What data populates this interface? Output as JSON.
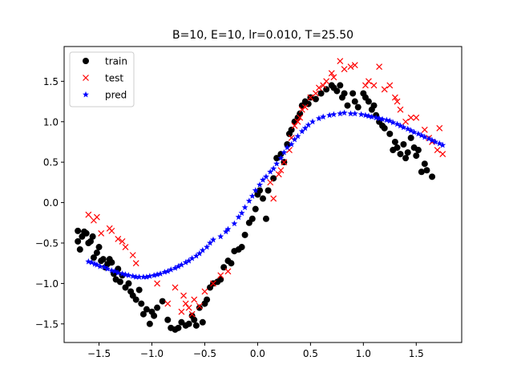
{
  "chart_data": {
    "type": "scatter",
    "title": "B=10, E=10, lr=0.010, T=25.50",
    "xlabel": "",
    "ylabel": "",
    "xlim": [
      -1.83,
      1.93
    ],
    "ylim": [
      -1.73,
      1.93
    ],
    "xticks": [
      -1.5,
      -1.0,
      -0.5,
      0.0,
      0.5,
      1.0,
      1.5
    ],
    "xtick_labels": [
      "−1.5",
      "−1.0",
      "−0.5",
      "0.0",
      "0.5",
      "1.0",
      "1.5"
    ],
    "yticks": [
      -1.5,
      -1.0,
      -0.5,
      0.0,
      0.5,
      1.0,
      1.5
    ],
    "ytick_labels": [
      "−1.5",
      "−1.0",
      "−0.5",
      "0.0",
      "0.5",
      "1.0",
      "1.5"
    ],
    "grid": false,
    "legend_position": "top-left",
    "series": [
      {
        "name": "train",
        "marker": "circle",
        "color": "#000000",
        "points": [
          [
            -1.7,
            -0.35
          ],
          [
            -1.7,
            -0.48
          ],
          [
            -1.68,
            -0.58
          ],
          [
            -1.66,
            -0.42
          ],
          [
            -1.64,
            -0.36
          ],
          [
            -1.62,
            -0.38
          ],
          [
            -1.6,
            -0.5
          ],
          [
            -1.58,
            -0.48
          ],
          [
            -1.56,
            -0.42
          ],
          [
            -1.55,
            -0.68
          ],
          [
            -1.52,
            -0.62
          ],
          [
            -1.5,
            -0.55
          ],
          [
            -1.48,
            -0.72
          ],
          [
            -1.46,
            -0.7
          ],
          [
            -1.44,
            -0.8
          ],
          [
            -1.42,
            -0.76
          ],
          [
            -1.4,
            -0.7
          ],
          [
            -1.38,
            -0.74
          ],
          [
            -1.36,
            -0.88
          ],
          [
            -1.34,
            -0.95
          ],
          [
            -1.32,
            -0.82
          ],
          [
            -1.3,
            -0.98
          ],
          [
            -1.28,
            -0.9
          ],
          [
            -1.25,
            -1.05
          ],
          [
            -1.22,
            -1.0
          ],
          [
            -1.2,
            -1.1
          ],
          [
            -1.18,
            -1.15
          ],
          [
            -1.15,
            -1.2
          ],
          [
            -1.12,
            -1.08
          ],
          [
            -1.1,
            -1.25
          ],
          [
            -1.08,
            -1.38
          ],
          [
            -1.05,
            -1.32
          ],
          [
            -1.02,
            -1.5
          ],
          [
            -1.0,
            -1.35
          ],
          [
            -0.98,
            -1.4
          ],
          [
            -0.95,
            -1.3
          ],
          [
            -0.9,
            -1.22
          ],
          [
            -0.85,
            -1.45
          ],
          [
            -0.82,
            -1.55
          ],
          [
            -0.78,
            -1.57
          ],
          [
            -0.75,
            -1.55
          ],
          [
            -0.72,
            -1.48
          ],
          [
            -0.68,
            -1.52
          ],
          [
            -0.65,
            -1.5
          ],
          [
            -0.62,
            -1.4
          ],
          [
            -0.6,
            -1.45
          ],
          [
            -0.58,
            -1.52
          ],
          [
            -0.55,
            -1.3
          ],
          [
            -0.52,
            -1.48
          ],
          [
            -0.5,
            -1.25
          ],
          [
            -0.48,
            -1.2
          ],
          [
            -0.45,
            -1.05
          ],
          [
            -0.42,
            -1.0
          ],
          [
            -0.38,
            -0.98
          ],
          [
            -0.35,
            -0.95
          ],
          [
            -0.32,
            -0.8
          ],
          [
            -0.28,
            -0.72
          ],
          [
            -0.25,
            -0.75
          ],
          [
            -0.22,
            -0.6
          ],
          [
            -0.18,
            -0.58
          ],
          [
            -0.15,
            -0.55
          ],
          [
            -0.12,
            -0.4
          ],
          [
            -0.08,
            -0.25
          ],
          [
            -0.05,
            -0.2
          ],
          [
            -0.02,
            -0.08
          ],
          [
            0.0,
            0.1
          ],
          [
            0.02,
            0.15
          ],
          [
            0.05,
            0.05
          ],
          [
            0.08,
            -0.2
          ],
          [
            0.1,
            0.15
          ],
          [
            0.15,
            0.3
          ],
          [
            0.18,
            0.55
          ],
          [
            0.22,
            0.6
          ],
          [
            0.25,
            0.5
          ],
          [
            0.28,
            0.72
          ],
          [
            0.3,
            0.85
          ],
          [
            0.32,
            0.9
          ],
          [
            0.35,
            1.0
          ],
          [
            0.38,
            1.05
          ],
          [
            0.4,
            1.1
          ],
          [
            0.42,
            1.2
          ],
          [
            0.45,
            1.25
          ],
          [
            0.48,
            1.22
          ],
          [
            0.5,
            1.3
          ],
          [
            0.55,
            1.28
          ],
          [
            0.6,
            1.35
          ],
          [
            0.65,
            1.4
          ],
          [
            0.7,
            1.45
          ],
          [
            0.72,
            1.42
          ],
          [
            0.75,
            1.38
          ],
          [
            0.78,
            1.45
          ],
          [
            0.8,
            1.3
          ],
          [
            0.82,
            1.35
          ],
          [
            0.85,
            1.2
          ],
          [
            0.9,
            1.35
          ],
          [
            0.92,
            1.25
          ],
          [
            0.95,
            1.18
          ],
          [
            1.0,
            1.35
          ],
          [
            1.02,
            1.3
          ],
          [
            1.05,
            1.25
          ],
          [
            1.08,
            1.15
          ],
          [
            1.1,
            1.2
          ],
          [
            1.12,
            1.08
          ],
          [
            1.15,
            1.0
          ],
          [
            1.18,
            0.95
          ],
          [
            1.2,
            0.92
          ],
          [
            1.25,
            0.85
          ],
          [
            1.28,
            0.65
          ],
          [
            1.3,
            0.75
          ],
          [
            1.32,
            0.68
          ],
          [
            1.35,
            0.6
          ],
          [
            1.38,
            0.72
          ],
          [
            1.4,
            0.55
          ],
          [
            1.42,
            0.62
          ],
          [
            1.45,
            0.8
          ],
          [
            1.48,
            0.68
          ],
          [
            1.5,
            0.58
          ],
          [
            1.52,
            0.65
          ],
          [
            1.55,
            0.38
          ],
          [
            1.58,
            0.48
          ],
          [
            1.6,
            0.4
          ],
          [
            1.65,
            0.32
          ]
        ]
      },
      {
        "name": "test",
        "marker": "x",
        "color": "#ff0000",
        "points": [
          [
            -1.6,
            -0.15
          ],
          [
            -1.55,
            -0.22
          ],
          [
            -1.52,
            -0.18
          ],
          [
            -1.48,
            -0.38
          ],
          [
            -1.4,
            -0.32
          ],
          [
            -1.38,
            -0.35
          ],
          [
            -1.32,
            -0.45
          ],
          [
            -1.28,
            -0.48
          ],
          [
            -1.25,
            -0.55
          ],
          [
            -1.18,
            -0.65
          ],
          [
            -1.15,
            -0.75
          ],
          [
            -0.95,
            -1.0
          ],
          [
            -0.85,
            -1.25
          ],
          [
            -0.78,
            -1.05
          ],
          [
            -0.72,
            -1.35
          ],
          [
            -0.7,
            -1.15
          ],
          [
            -0.68,
            -1.25
          ],
          [
            -0.65,
            -1.3
          ],
          [
            -0.62,
            -1.38
          ],
          [
            -0.6,
            -1.2
          ],
          [
            -0.55,
            -1.28
          ],
          [
            -0.5,
            -1.1
          ],
          [
            -0.42,
            -1.0
          ],
          [
            -0.35,
            -0.9
          ],
          [
            -0.28,
            -0.85
          ],
          [
            0.12,
            0.25
          ],
          [
            0.15,
            0.05
          ],
          [
            0.2,
            0.35
          ],
          [
            0.22,
            0.4
          ],
          [
            0.25,
            0.5
          ],
          [
            0.3,
            0.65
          ],
          [
            0.32,
            0.8
          ],
          [
            0.35,
            0.95
          ],
          [
            0.38,
            1.0
          ],
          [
            0.4,
            1.05
          ],
          [
            0.42,
            1.15
          ],
          [
            0.45,
            1.18
          ],
          [
            0.5,
            1.3
          ],
          [
            0.55,
            1.35
          ],
          [
            0.58,
            1.42
          ],
          [
            0.62,
            1.45
          ],
          [
            0.65,
            1.5
          ],
          [
            0.7,
            1.6
          ],
          [
            0.72,
            1.55
          ],
          [
            0.78,
            1.75
          ],
          [
            0.82,
            1.65
          ],
          [
            0.88,
            1.68
          ],
          [
            0.92,
            1.7
          ],
          [
            1.02,
            1.45
          ],
          [
            1.05,
            1.5
          ],
          [
            1.1,
            1.45
          ],
          [
            1.15,
            1.68
          ],
          [
            1.2,
            1.4
          ],
          [
            1.25,
            1.45
          ],
          [
            1.3,
            1.3
          ],
          [
            1.32,
            1.25
          ],
          [
            1.35,
            1.15
          ],
          [
            1.4,
            1.0
          ],
          [
            1.45,
            1.05
          ],
          [
            1.5,
            1.05
          ],
          [
            1.58,
            0.9
          ],
          [
            1.62,
            0.8
          ],
          [
            1.65,
            0.75
          ],
          [
            1.7,
            0.65
          ],
          [
            1.72,
            0.92
          ],
          [
            1.75,
            0.6
          ]
        ]
      },
      {
        "name": "pred",
        "marker": "star",
        "color": "#0000ff",
        "points": [
          [
            -1.6,
            -0.73
          ],
          [
            -1.57,
            -0.74
          ],
          [
            -1.54,
            -0.76
          ],
          [
            -1.52,
            -0.77
          ],
          [
            -1.49,
            -0.79
          ],
          [
            -1.45,
            -0.8
          ],
          [
            -1.42,
            -0.82
          ],
          [
            -1.38,
            -0.84
          ],
          [
            -1.35,
            -0.85
          ],
          [
            -1.32,
            -0.87
          ],
          [
            -1.28,
            -0.88
          ],
          [
            -1.25,
            -0.89
          ],
          [
            -1.22,
            -0.9
          ],
          [
            -1.18,
            -0.91
          ],
          [
            -1.15,
            -0.92
          ],
          [
            -1.12,
            -0.92
          ],
          [
            -1.08,
            -0.92
          ],
          [
            -1.05,
            -0.92
          ],
          [
            -1.02,
            -0.91
          ],
          [
            -0.98,
            -0.9
          ],
          [
            -0.95,
            -0.89
          ],
          [
            -0.92,
            -0.88
          ],
          [
            -0.88,
            -0.86
          ],
          [
            -0.85,
            -0.85
          ],
          [
            -0.82,
            -0.83
          ],
          [
            -0.78,
            -0.81
          ],
          [
            -0.75,
            -0.79
          ],
          [
            -0.72,
            -0.77
          ],
          [
            -0.68,
            -0.74
          ],
          [
            -0.65,
            -0.72
          ],
          [
            -0.62,
            -0.69
          ],
          [
            -0.58,
            -0.66
          ],
          [
            -0.55,
            -0.63
          ],
          [
            -0.52,
            -0.59
          ],
          [
            -0.48,
            -0.55
          ],
          [
            -0.45,
            -0.5
          ],
          [
            -0.42,
            -0.46
          ],
          [
            -0.35,
            -0.42
          ],
          [
            -0.3,
            -0.36
          ],
          [
            -0.28,
            -0.33
          ],
          [
            -0.22,
            -0.26
          ],
          [
            -0.18,
            -0.18
          ],
          [
            -0.15,
            -0.13
          ],
          [
            -0.12,
            -0.06
          ],
          [
            -0.08,
            0.02
          ],
          [
            -0.05,
            0.08
          ],
          [
            -0.02,
            0.15
          ],
          [
            0.02,
            0.22
          ],
          [
            0.05,
            0.28
          ],
          [
            0.08,
            0.32
          ],
          [
            0.12,
            0.38
          ],
          [
            0.15,
            0.42
          ],
          [
            0.18,
            0.48
          ],
          [
            0.22,
            0.55
          ],
          [
            0.25,
            0.62
          ],
          [
            0.28,
            0.68
          ],
          [
            0.32,
            0.72
          ],
          [
            0.35,
            0.78
          ],
          [
            0.38,
            0.82
          ],
          [
            0.42,
            0.88
          ],
          [
            0.45,
            0.92
          ],
          [
            0.48,
            0.96
          ],
          [
            0.52,
            1.0
          ],
          [
            0.58,
            1.04
          ],
          [
            0.62,
            1.06
          ],
          [
            0.68,
            1.08
          ],
          [
            0.72,
            1.09
          ],
          [
            0.78,
            1.1
          ],
          [
            0.82,
            1.11
          ],
          [
            0.88,
            1.1
          ],
          [
            0.92,
            1.1
          ],
          [
            0.98,
            1.09
          ],
          [
            1.02,
            1.08
          ],
          [
            1.05,
            1.07
          ],
          [
            1.08,
            1.06
          ],
          [
            1.12,
            1.05
          ],
          [
            1.15,
            1.04
          ],
          [
            1.18,
            1.03
          ],
          [
            1.22,
            1.02
          ],
          [
            1.25,
            1.01
          ],
          [
            1.28,
            0.99
          ],
          [
            1.32,
            0.97
          ],
          [
            1.35,
            0.95
          ],
          [
            1.38,
            0.93
          ],
          [
            1.42,
            0.91
          ],
          [
            1.45,
            0.89
          ],
          [
            1.48,
            0.87
          ],
          [
            1.52,
            0.85
          ],
          [
            1.55,
            0.83
          ],
          [
            1.58,
            0.81
          ],
          [
            1.62,
            0.79
          ],
          [
            1.65,
            0.77
          ],
          [
            1.68,
            0.75
          ],
          [
            1.72,
            0.73
          ],
          [
            1.75,
            0.71
          ]
        ]
      }
    ]
  }
}
